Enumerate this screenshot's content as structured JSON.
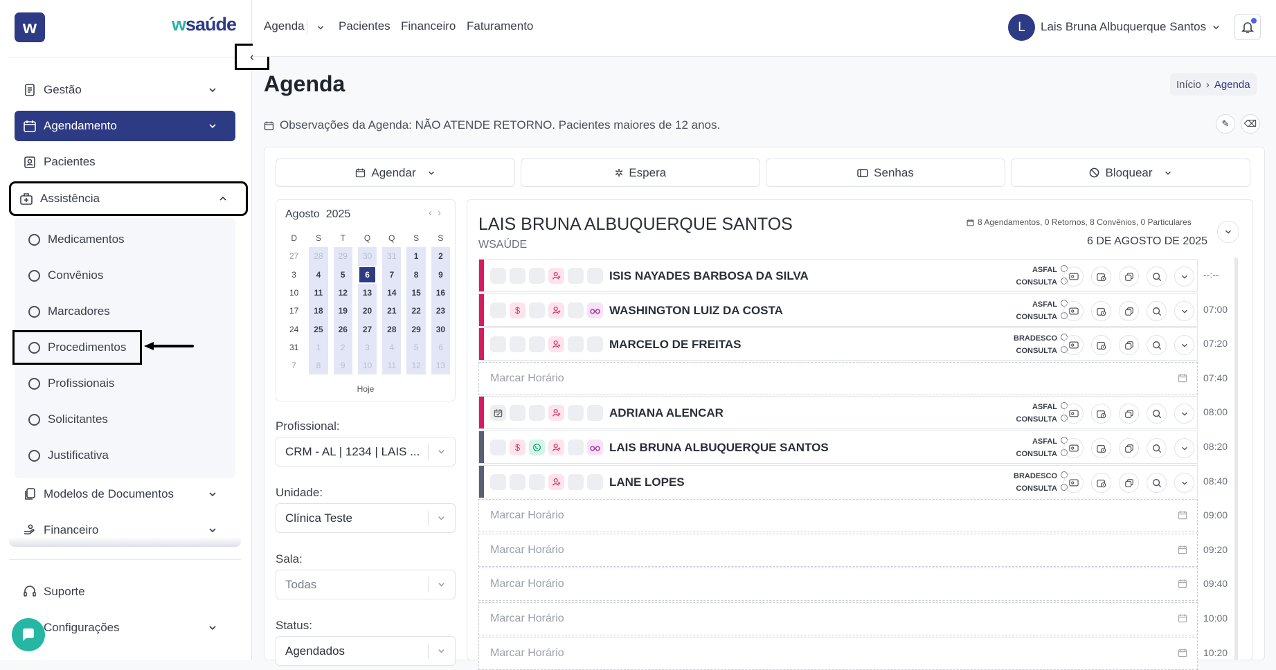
{
  "brand": {
    "logo_letter": "w",
    "name_w": "w",
    "name_rest": "saúde"
  },
  "sidebar": {
    "items": [
      {
        "key": "gestao",
        "label": "Gestão",
        "icon": "clipboard-icon"
      },
      {
        "key": "agendamento",
        "label": "Agendamento",
        "icon": "calendar-icon"
      },
      {
        "key": "pacientes",
        "label": "Pacientes",
        "icon": "badge-icon"
      },
      {
        "key": "assistencia",
        "label": "Assistência",
        "icon": "medical-bag-icon"
      },
      {
        "key": "modelos",
        "label": "Modelos de Documentos",
        "icon": "documents-icon"
      },
      {
        "key": "financeiro",
        "label": "Financeiro",
        "icon": "money-icon"
      },
      {
        "key": "suporte",
        "label": "Suporte",
        "icon": "headset-icon"
      },
      {
        "key": "configuracoes",
        "label": "Configurações",
        "icon": "gear-icon"
      }
    ],
    "subitems": [
      "Medicamentos",
      "Convênios",
      "Marcadores",
      "Procedimentos",
      "Profissionais",
      "Solicitantes",
      "Justificativa"
    ]
  },
  "topnav": {
    "agenda": "Agenda",
    "pacientes": "Pacientes",
    "financeiro": "Financeiro",
    "faturamento": "Faturamento"
  },
  "user": {
    "initial": "L",
    "name": "Lais Bruna Albuquerque Santos"
  },
  "page": {
    "title": "Agenda",
    "breadcrumb_home": "Início",
    "breadcrumb_current": "Agenda",
    "observations": "Observações da Agenda: NÃO ATENDE RETORNO. Pacientes maiores de 12 anos."
  },
  "actions": {
    "agendar": "Agendar",
    "espera": "Espera",
    "senhas": "Senhas",
    "bloquear": "Bloquear"
  },
  "calendar": {
    "month": "Agosto",
    "year": "2025",
    "today_label": "Hoje",
    "weekdays": [
      "D",
      "S",
      "T",
      "Q",
      "Q",
      "S",
      "S"
    ],
    "weeks": [
      [
        "27",
        "28",
        "29",
        "30",
        "31",
        "1",
        "2"
      ],
      [
        "3",
        "4",
        "5",
        "6",
        "7",
        "8",
        "9"
      ],
      [
        "10",
        "11",
        "12",
        "13",
        "14",
        "15",
        "16"
      ],
      [
        "17",
        "18",
        "19",
        "20",
        "21",
        "22",
        "23"
      ],
      [
        "24",
        "25",
        "26",
        "27",
        "28",
        "29",
        "30"
      ],
      [
        "31",
        "1",
        "2",
        "3",
        "4",
        "5",
        "6"
      ],
      [
        "7",
        "8",
        "9",
        "10",
        "11",
        "12",
        "13"
      ]
    ],
    "selected_day": "6"
  },
  "filters": {
    "profissional_label": "Profissional:",
    "profissional_value": "CRM - AL | 1234 | LAIS ...",
    "unidade_label": "Unidade:",
    "unidade_value": "Clínica Teste",
    "sala_label": "Sala:",
    "sala_value": "Todas",
    "status_label": "Status:",
    "status_value": "Agendados"
  },
  "schedule": {
    "doctor": "LAIS BRUNA ALBUQUERQUE SANTOS",
    "unit": "WSAÚDE",
    "stats": "8 Agendamentos, 0 Retornos, 8 Convênios, 0 Particulares",
    "date": "6 DE AGOSTO DE 2025",
    "empty_label": "Marcar Horário",
    "rows": [
      {
        "type": "appt",
        "name": "ISIS NAYADES BARBOSA DA SILVA",
        "convenio": "ASFAL",
        "tipo": "CONSULTA",
        "time": "--:--",
        "bar": "#d81b60",
        "chips": [
          "",
          "",
          "",
          "user",
          "",
          ""
        ]
      },
      {
        "type": "appt",
        "name": "WASHINGTON LUIZ DA COSTA",
        "convenio": "ASFAL",
        "tipo": "CONSULTA",
        "time": "07:00",
        "bar": "#d81b60",
        "chips": [
          "",
          "$",
          "",
          "user",
          "",
          "glasses"
        ]
      },
      {
        "type": "appt",
        "name": "MARCELO DE FREITAS",
        "convenio": "BRADESCO",
        "tipo": "CONSULTA",
        "time": "07:20",
        "bar": "#d81b60",
        "chips": [
          "",
          "",
          "",
          "user",
          "",
          ""
        ]
      },
      {
        "type": "empty",
        "time": "07:40"
      },
      {
        "type": "appt",
        "name": "ADRIANA ALENCAR",
        "convenio": "ASFAL",
        "tipo": "CONSULTA",
        "time": "08:00",
        "bar": "#d81b60",
        "chips": [
          "cal",
          "",
          "",
          "user",
          "",
          ""
        ]
      },
      {
        "type": "appt",
        "name": "LAIS BRUNA ALBUQUERQUE SANTOS",
        "convenio": "ASFAL",
        "tipo": "CONSULTA",
        "time": "08:20",
        "bar": "#5b5f73",
        "chips": [
          "",
          "$",
          "wa",
          "user",
          "",
          "glasses"
        ]
      },
      {
        "type": "appt",
        "name": "LANE LOPES",
        "convenio": "BRADESCO",
        "tipo": "CONSULTA",
        "time": "08:40",
        "bar": "#5b5f73",
        "chips": [
          "",
          "",
          "",
          "user",
          "",
          ""
        ]
      },
      {
        "type": "empty",
        "time": "09:00"
      },
      {
        "type": "empty",
        "time": "09:20"
      },
      {
        "type": "empty",
        "time": "09:40"
      },
      {
        "type": "empty",
        "time": "10:00"
      },
      {
        "type": "empty",
        "time": "10:20"
      }
    ]
  },
  "colors": {
    "primary": "#2d3a84",
    "accent": "#2bb3a7",
    "urgent_bar": "#d81b60",
    "done_bar": "#5b5f73"
  }
}
